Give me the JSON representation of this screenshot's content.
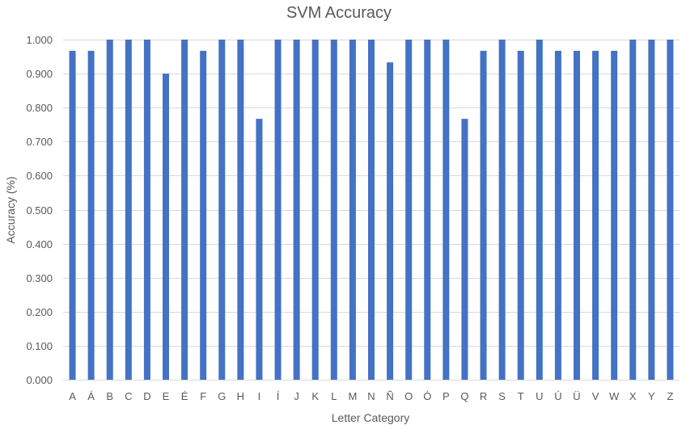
{
  "chart_data": {
    "type": "bar",
    "title": "SVM Accuracy",
    "xlabel": "Letter Category",
    "ylabel": "Accuracy (%)",
    "ylim": [
      0,
      1
    ],
    "yticks": [
      "0.000",
      "0.100",
      "0.200",
      "0.300",
      "0.400",
      "0.500",
      "0.600",
      "0.700",
      "0.800",
      "0.900",
      "1.000"
    ],
    "grid": true,
    "legend": "none",
    "bar_color": "#4472c4",
    "categories": [
      "A",
      "Á",
      "B",
      "C",
      "D",
      "E",
      "É",
      "F",
      "G",
      "H",
      "I",
      "Í",
      "J",
      "K",
      "L",
      "M",
      "N",
      "Ñ",
      "O",
      "Ó",
      "P",
      "Q",
      "R",
      "S",
      "T",
      "U",
      "Ú",
      "Ü",
      "V",
      "W",
      "X",
      "Y",
      "Z"
    ],
    "values": [
      0.967,
      0.967,
      1.0,
      1.0,
      1.0,
      0.9,
      1.0,
      0.967,
      1.0,
      1.0,
      0.767,
      1.0,
      1.0,
      1.0,
      1.0,
      1.0,
      1.0,
      0.933,
      1.0,
      1.0,
      1.0,
      0.767,
      0.967,
      1.0,
      0.967,
      1.0,
      0.967,
      0.967,
      0.967,
      0.967,
      1.0,
      1.0,
      1.0
    ]
  }
}
